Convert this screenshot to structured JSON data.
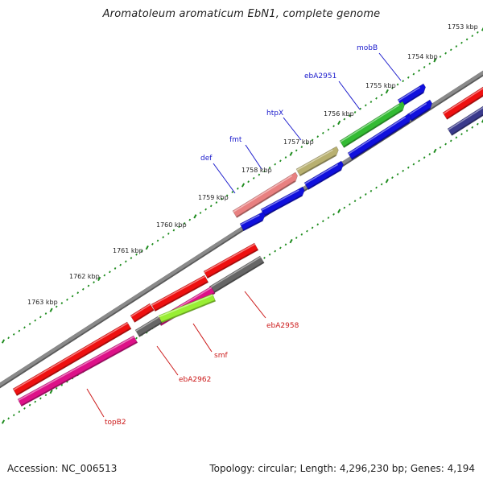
{
  "title": "Aromatoleum aromaticum EbN1, complete genome",
  "footer": {
    "accession": "Accession: NC_006513",
    "topology": "Topology: circular; Length: 4,296,230 bp; Genes: 4,194"
  },
  "colors": {
    "backbone": "#8a8a8a",
    "tick": "#1e8c1e",
    "label_forward": "#1a1acc",
    "label_reverse": "#cc1a1a"
  },
  "kbp_labels": [
    "1753 kbp",
    "1754 kbp",
    "1755 kbp",
    "1756 kbp",
    "1757 kbp",
    "1758 kbp",
    "1759 kbp",
    "1760 kbp",
    "1761 kbp",
    "1762 kbp",
    "1763 kbp"
  ],
  "gene_labels": [
    {
      "text": "mobB",
      "strand": "forward"
    },
    {
      "text": "ebA2951",
      "strand": "forward"
    },
    {
      "text": "htpX",
      "strand": "forward"
    },
    {
      "text": "fmt",
      "strand": "forward"
    },
    {
      "text": "def",
      "strand": "forward"
    },
    {
      "text": "ebA2958",
      "strand": "reverse"
    },
    {
      "text": "smf",
      "strand": "reverse"
    },
    {
      "text": "ebA2962",
      "strand": "reverse"
    },
    {
      "text": "topB2",
      "strand": "reverse"
    }
  ],
  "features": [
    {
      "name": "red-gene-far-right",
      "color": "#ee1010"
    },
    {
      "name": "navy-gene-far-right",
      "color": "#3a3a8c"
    },
    {
      "name": "mobB-gene",
      "color": "#1010dd"
    },
    {
      "name": "blue-gene-1",
      "color": "#1010dd"
    },
    {
      "name": "ebA2951-gene",
      "color": "#33bb33"
    },
    {
      "name": "blue-gene-2",
      "color": "#1010dd"
    },
    {
      "name": "htpX-gene",
      "color": "#b8b070"
    },
    {
      "name": "blue-gene-3",
      "color": "#1010dd"
    },
    {
      "name": "def-gene",
      "color": "#e88080"
    },
    {
      "name": "fmt-gene",
      "color": "#1010dd"
    },
    {
      "name": "blue-gene-4",
      "color": "#1010dd"
    },
    {
      "name": "red-gene-1",
      "color": "#ee1010"
    },
    {
      "name": "ebA2958-gene",
      "color": "#666666"
    },
    {
      "name": "red-gene-2",
      "color": "#ee1010"
    },
    {
      "name": "smf-gene",
      "color": "#dd1188"
    },
    {
      "name": "lime-gene",
      "color": "#99ee33"
    },
    {
      "name": "red-gene-3",
      "color": "#ee1010"
    },
    {
      "name": "ebA2962-gene",
      "color": "#666666"
    },
    {
      "name": "red-gene-4",
      "color": "#ee1010"
    },
    {
      "name": "topB2-gene",
      "color": "#dd1188"
    }
  ]
}
